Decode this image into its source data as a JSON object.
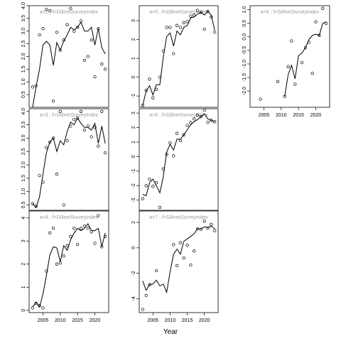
{
  "figure": {
    "xlabel": "Year"
  },
  "chart_data": [
    {
      "type": "line",
      "title": "a=2 ; f=GillnetSurveyIndex",
      "xlim": [
        2001,
        2024
      ],
      "ylim": [
        0,
        4
      ],
      "yticks": [
        0.5,
        1.0,
        1.5,
        2.0,
        2.5,
        3.0,
        3.5,
        4.0
      ],
      "ytick_labels": [
        "0.5",
        "1.0",
        "1.5",
        "2.0",
        "2.5",
        "3.0",
        "3.5",
        "4.0"
      ],
      "xticks": [],
      "xtick_labels": [],
      "series": [
        {
          "kind": "points",
          "x": [
            2002,
            2003,
            2004,
            2005,
            2006,
            2007,
            2008,
            2009,
            2010,
            2011,
            2012,
            2013,
            2014,
            2015,
            2016,
            2017,
            2018,
            2019,
            2020,
            2021,
            2022,
            2023
          ],
          "y": [
            0.8,
            0.85,
            2.85,
            3.1,
            3.85,
            3.8,
            0.25,
            2.95,
            2.25,
            2.65,
            3.25,
            3.9,
            3.0,
            3.15,
            3.4,
            1.85,
            2.0,
            2.65,
            1.2,
            3.1,
            1.7,
            1.5
          ]
        },
        {
          "kind": "line",
          "x": [
            2002,
            2003,
            2004,
            2005,
            2006,
            2007,
            2008,
            2009,
            2010,
            2011,
            2012,
            2013,
            2014,
            2015,
            2016,
            2017,
            2018,
            2019,
            2020,
            2021,
            2022,
            2023
          ],
          "y": [
            0.0,
            0.8,
            1.5,
            2.45,
            2.6,
            2.45,
            1.65,
            2.55,
            2.25,
            2.6,
            2.85,
            3.15,
            3.05,
            3.15,
            3.35,
            3.0,
            3.0,
            3.15,
            2.45,
            3.1,
            2.35,
            2.1
          ]
        }
      ]
    },
    {
      "type": "line",
      "title": "a=5 ; f=GillnetSurveyIndex",
      "xlim": [
        2001,
        2024
      ],
      "ylim": [
        -1.6,
        3.8
      ],
      "yticks": [
        -1,
        0,
        1,
        2,
        3
      ],
      "ytick_labels": [
        "-1",
        "0",
        "1",
        "2",
        "3"
      ],
      "xticks": [],
      "xtick_labels": [],
      "series": [
        {
          "kind": "points",
          "x": [
            2002,
            2003,
            2004,
            2005,
            2006,
            2007,
            2008,
            2009,
            2010,
            2011,
            2012,
            2013,
            2014,
            2015,
            2016,
            2017,
            2018,
            2019,
            2020,
            2021,
            2022,
            2023
          ],
          "y": [
            -1.5,
            -0.7,
            -0.1,
            -1.1,
            -0.65,
            0.0,
            1.4,
            2.65,
            2.65,
            1.25,
            2.75,
            2.65,
            2.9,
            2.95,
            3.25,
            3.3,
            3.55,
            3.45,
            2.55,
            3.5,
            3.2,
            2.4
          ]
        },
        {
          "kind": "line",
          "x": [
            2002,
            2003,
            2004,
            2005,
            2006,
            2007,
            2008,
            2009,
            2010,
            2011,
            2012,
            2013,
            2014,
            2015,
            2016,
            2017,
            2018,
            2019,
            2020,
            2021,
            2022,
            2023
          ],
          "y": [
            -1.5,
            -0.75,
            -0.45,
            -0.95,
            -0.4,
            -0.4,
            1.05,
            2.15,
            2.35,
            1.65,
            2.45,
            2.25,
            2.65,
            2.75,
            3.15,
            3.2,
            3.35,
            3.45,
            3.3,
            3.5,
            3.3,
            2.5
          ]
        }
      ]
    },
    {
      "type": "line",
      "title": "a=8 ; f=GillnetSurveyIndex",
      "xlim": [
        2001,
        2024
      ],
      "ylim": [
        -2.6,
        1.15
      ],
      "yticks": [
        -2.0,
        -1.5,
        -1.0,
        -0.5,
        0.0,
        0.5,
        1.0
      ],
      "ytick_labels": [
        "-2.0",
        "-1.5",
        "-1.0",
        "-0.5",
        "0.0",
        "0.5",
        "1.0"
      ],
      "xticks": [
        2005,
        2010,
        2015,
        2020
      ],
      "xtick_labels": [
        "2005",
        "2010",
        "2015",
        "2020"
      ],
      "series": [
        {
          "kind": "points",
          "x": [
            2004,
            2009,
            2011,
            2012,
            2013,
            2014,
            2016,
            2017,
            2018,
            2019,
            2020,
            2021,
            2022,
            2023
          ],
          "y": [
            -2.3,
            -1.65,
            -2.2,
            -1.1,
            -0.15,
            -1.75,
            -0.95,
            -0.4,
            -0.2,
            -1.35,
            0.55,
            0.05,
            1.05,
            0.5
          ]
        },
        {
          "kind": "line",
          "x": [
            2011,
            2012,
            2013,
            2014,
            2015,
            2016,
            2017,
            2018,
            2019,
            2020,
            2021,
            2022,
            2023
          ],
          "y": [
            -2.2,
            -1.4,
            -1.05,
            -1.55,
            -0.7,
            -0.6,
            -0.4,
            -0.1,
            0.05,
            0.1,
            0.05,
            0.5,
            0.55
          ]
        }
      ]
    },
    {
      "type": "line",
      "title": "a=3 ; f=GillnetSurveyIndex",
      "xlim": [
        2001,
        2024
      ],
      "ylim": [
        0.3,
        4.1
      ],
      "yticks": [
        0.5,
        1.0,
        1.5,
        2.0,
        2.5,
        3.0,
        3.5,
        4.0
      ],
      "ytick_labels": [
        "0.5",
        "1.0",
        "1.5",
        "2.0",
        "2.5",
        "3.0",
        "3.5",
        "4.0"
      ],
      "xticks": [],
      "xtick_labels": [],
      "series": [
        {
          "kind": "points",
          "x": [
            2002,
            2003,
            2004,
            2005,
            2006,
            2007,
            2008,
            2009,
            2010,
            2011,
            2012,
            2013,
            2014,
            2015,
            2016,
            2017,
            2018,
            2019,
            2020,
            2021,
            2022,
            2023
          ],
          "y": [
            0.55,
            0.45,
            1.6,
            1.35,
            2.65,
            2.85,
            3.0,
            1.65,
            4.0,
            0.5,
            2.9,
            3.45,
            3.7,
            3.75,
            4.0,
            3.3,
            3.45,
            3.05,
            3.4,
            2.7,
            4.0,
            2.45
          ]
        },
        {
          "kind": "line",
          "x": [
            2002,
            2003,
            2004,
            2005,
            2006,
            2007,
            2008,
            2009,
            2010,
            2011,
            2012,
            2013,
            2014,
            2015,
            2016,
            2017,
            2018,
            2019,
            2020,
            2021,
            2022,
            2023
          ],
          "y": [
            0.55,
            0.4,
            0.8,
            1.65,
            2.45,
            2.85,
            3.0,
            2.5,
            2.9,
            2.75,
            3.25,
            3.6,
            3.5,
            3.75,
            3.55,
            3.4,
            3.4,
            3.3,
            3.55,
            2.8,
            3.45,
            2.8
          ]
        }
      ]
    },
    {
      "type": "line",
      "title": "a=6 ; f=GillnetSurveyIndex",
      "xlim": [
        2001,
        2024
      ],
      "ylim": [
        -3.7,
        3.3
      ],
      "yticks": [
        -3,
        -2,
        -1,
        0,
        1,
        2,
        3
      ],
      "ytick_labels": [
        "-3",
        "-2",
        "-1",
        "0",
        "1",
        "2",
        "3"
      ],
      "xticks": [],
      "xtick_labels": [],
      "series": [
        {
          "kind": "points",
          "x": [
            2002,
            2003,
            2004,
            2005,
            2006,
            2007,
            2008,
            2009,
            2010,
            2011,
            2012,
            2013,
            2014,
            2015,
            2016,
            2017,
            2018,
            2019,
            2020,
            2021,
            2022,
            2023
          ],
          "y": [
            -2.9,
            -2.0,
            -1.55,
            -2.05,
            -1.8,
            -3.5,
            -0.85,
            0.15,
            0.95,
            0.05,
            1.6,
            1.1,
            1.5,
            2.15,
            2.35,
            2.6,
            2.85,
            2.75,
            3.2,
            2.35,
            2.5,
            2.4
          ]
        },
        {
          "kind": "line",
          "x": [
            2002,
            2003,
            2004,
            2005,
            2006,
            2007,
            2008,
            2009,
            2010,
            2011,
            2012,
            2013,
            2014,
            2015,
            2016,
            2017,
            2018,
            2019,
            2020,
            2021,
            2022,
            2023
          ],
          "y": [
            -2.6,
            -2.7,
            -1.8,
            -1.55,
            -2.0,
            -2.5,
            -1.4,
            0.3,
            0.85,
            0.45,
            1.2,
            1.2,
            1.5,
            1.85,
            2.2,
            2.4,
            2.55,
            2.75,
            2.95,
            2.6,
            2.5,
            2.4
          ]
        }
      ]
    },
    {
      "type": "line",
      "title": "a=4 ; f=GillnetSurveyIndex",
      "xlim": [
        2001,
        2024
      ],
      "ylim": [
        -0.1,
        4.3
      ],
      "yticks": [
        0,
        1,
        2,
        3,
        4
      ],
      "ytick_labels": [
        "0",
        "1",
        "2",
        "3",
        "4"
      ],
      "xticks": [
        2005,
        2010,
        2015,
        2020
      ],
      "xtick_labels": [
        "2005",
        "2010",
        "2015",
        "2020"
      ],
      "series": [
        {
          "kind": "points",
          "x": [
            2002,
            2003,
            2004,
            2005,
            2006,
            2007,
            2008,
            2009,
            2010,
            2011,
            2012,
            2013,
            2014,
            2015,
            2016,
            2017,
            2018,
            2019,
            2020,
            2021,
            2022,
            2023
          ],
          "y": [
            0.1,
            0.3,
            0.2,
            0.1,
            1.7,
            3.35,
            3.55,
            2.0,
            2.05,
            2.35,
            2.8,
            3.2,
            3.55,
            2.85,
            3.55,
            3.65,
            3.55,
            3.4,
            2.9,
            4.1,
            2.75,
            3.2
          ]
        },
        {
          "kind": "line",
          "x": [
            2002,
            2003,
            2004,
            2005,
            2006,
            2007,
            2008,
            2009,
            2010,
            2011,
            2012,
            2013,
            2014,
            2015,
            2016,
            2017,
            2018,
            2019,
            2020,
            2021,
            2022,
            2023
          ],
          "y": [
            0.15,
            0.35,
            0.15,
            0.7,
            1.5,
            2.4,
            2.75,
            2.7,
            2.1,
            2.8,
            2.6,
            3.05,
            3.35,
            3.55,
            3.45,
            3.55,
            3.75,
            3.45,
            3.45,
            3.55,
            2.75,
            3.35
          ]
        }
      ]
    },
    {
      "type": "line",
      "title": "a=7 ; f=GillnetSurveyIndex",
      "xlim": [
        2001,
        2024
      ],
      "ylim": [
        -5.1,
        2.9
      ],
      "yticks": [
        -4,
        -2,
        0,
        2
      ],
      "ytick_labels": [
        "-4",
        "-2",
        "0",
        "2"
      ],
      "xticks": [
        2005,
        2010,
        2015,
        2020
      ],
      "xtick_labels": [
        "2005",
        "2010",
        "2015",
        "2020"
      ],
      "series": [
        {
          "kind": "points",
          "x": [
            2002,
            2003,
            2004,
            2006,
            2011,
            2012,
            2013,
            2014,
            2015,
            2016,
            2017,
            2018,
            2019,
            2020,
            2021,
            2022,
            2023
          ],
          "y": [
            -4.85,
            -3.75,
            -2.9,
            -1.8,
            0.25,
            -1.4,
            0.4,
            -0.8,
            0.2,
            -1.35,
            -0.25,
            1.5,
            1.45,
            2.1,
            1.55,
            1.85,
            1.35
          ]
        },
        {
          "kind": "line",
          "x": [
            2002,
            2003,
            2004,
            2005,
            2006,
            2007,
            2008,
            2009,
            2010,
            2011,
            2012,
            2013,
            2014,
            2015,
            2016,
            2017,
            2018,
            2019,
            2020,
            2021,
            2022,
            2023
          ],
          "y": [
            -2.6,
            -3.35,
            -2.9,
            -2.85,
            -2.55,
            -3.0,
            -2.85,
            -3.5,
            -1.9,
            -0.5,
            -0.1,
            -0.5,
            0.5,
            0.7,
            0.9,
            1.1,
            1.5,
            1.5,
            1.65,
            1.6,
            1.7,
            1.5
          ]
        }
      ]
    }
  ]
}
